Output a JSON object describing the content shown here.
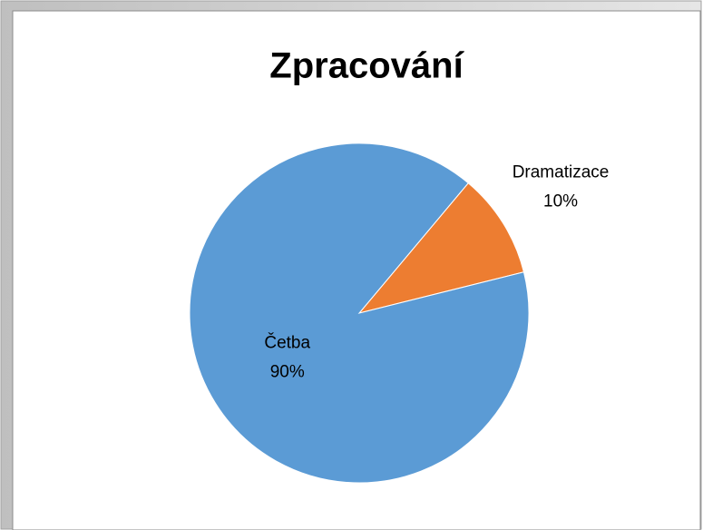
{
  "chart_data": {
    "type": "pie",
    "title": "Zpracování",
    "categories": [
      "Dramatizace",
      "Četba"
    ],
    "values": [
      10,
      90
    ],
    "value_labels": [
      "10%",
      "90%"
    ],
    "colors": [
      "#ed7d31",
      "#5b9bd5"
    ]
  }
}
